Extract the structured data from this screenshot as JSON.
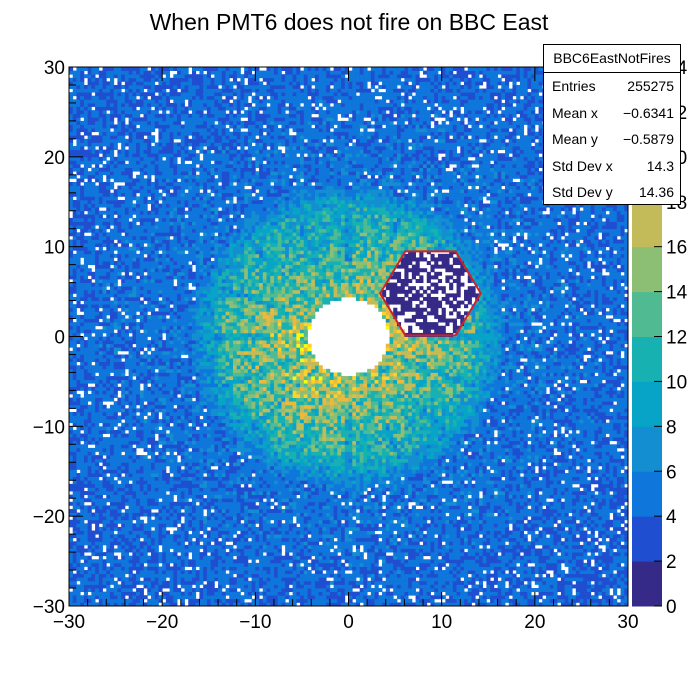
{
  "chart_data": {
    "type": "heatmap",
    "title": "When PMT6 does not fire on BBC East",
    "xlabel": "",
    "ylabel": "",
    "xlim": [
      -30,
      30
    ],
    "ylim": [
      -30,
      30
    ],
    "x_ticks": [
      "−30",
      "−20",
      "−10",
      "0",
      "10",
      "20",
      "30"
    ],
    "y_ticks": [
      "−30",
      "−20",
      "−10",
      "0",
      "10",
      "20",
      "30"
    ],
    "colorbar_ticks": [
      "0",
      "2",
      "4",
      "6",
      "8",
      "10",
      "12",
      "14",
      "16",
      "18",
      "20",
      "22",
      "24"
    ],
    "zlim": [
      0,
      24
    ],
    "bins": [
      150,
      150
    ],
    "structure": {
      "inner_hole_radius": 4.3,
      "ring_inner_radius": 4.3,
      "ring_outer_radius": 13.5,
      "outer_ring_radius": 17,
      "peak_counts": 16,
      "ring_counts": 11,
      "background_counts": 4,
      "hexagon_center": [
        8.8,
        4.8
      ],
      "hexagon_radius": 5.4,
      "hexagon_color": "#d0202a"
    },
    "stats": {
      "name": "BBC6EastNotFires",
      "rows": [
        {
          "label": "Entries",
          "value": "255275"
        },
        {
          "label": "Mean x",
          "value": "−0.6341"
        },
        {
          "label": "Mean y",
          "value": "−0.5879"
        },
        {
          "label": "Std Dev x",
          "value": "14.3"
        },
        {
          "label": "Std Dev y",
          "value": "14.36"
        }
      ]
    },
    "palette": [
      "#352a87",
      "#1f4ed0",
      "#0f77db",
      "#138ed1",
      "#07a4c7",
      "#18b1b2",
      "#50bb93",
      "#8cbe74",
      "#c3bb59",
      "#edb93d",
      "#fcd22b",
      "#f9fb0e"
    ]
  }
}
